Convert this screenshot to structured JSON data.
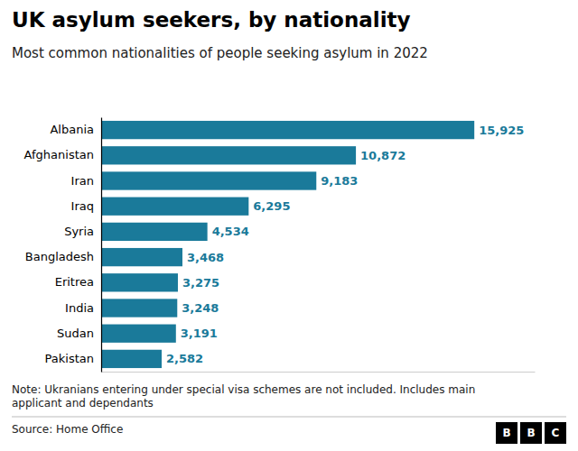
{
  "chart_data": {
    "type": "bar",
    "orientation": "horizontal",
    "title": "UK asylum seekers, by nationality",
    "subtitle": "Most common nationalities of people seeking asylum in 2022",
    "annotations": [
      "Note: Ukranians entering under special visa schemes are not included. Includes main\napplicant and dependants",
      "Source: Home Office",
      "BBC"
    ],
    "categories": [
      "Pakistan",
      "Sudan",
      "India",
      "Eritrea",
      "Bangladesh",
      "Syria",
      "Iraq",
      "Iran",
      "Afghanistan",
      "Albania"
    ],
    "values": [
      2582,
      3191,
      3248,
      3275,
      3468,
      4534,
      6295,
      9183,
      10872,
      15925
    ],
    "value_labels": [
      "2,582",
      "3,191",
      "3,248",
      "3,275",
      "3,468",
      "4,534",
      "6,295",
      "9,183",
      "10,872",
      "15,925"
    ],
    "data_labels": true,
    "color": "#1a7a9a",
    "xlim": [
      0,
      18500
    ],
    "tick_labels": "y"
  }
}
